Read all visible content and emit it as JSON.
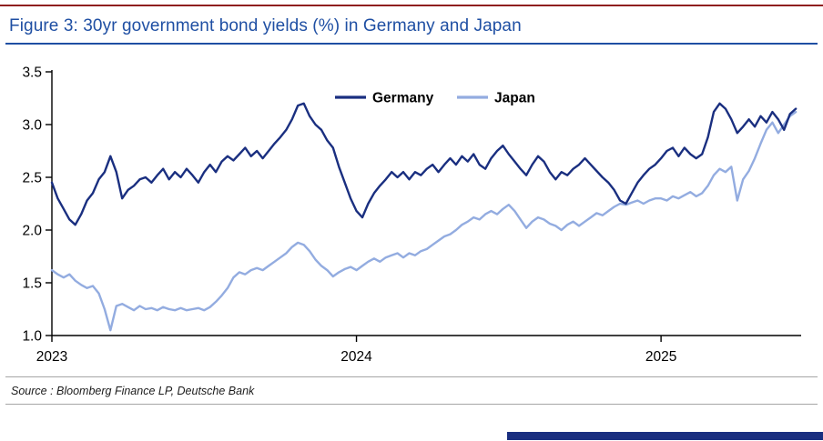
{
  "page": {
    "title": "Figure 3: 30yr government bond yields (%) in Germany and Japan",
    "source": "Source : Bloomberg Finance LP, Deutsche Bank"
  },
  "colors": {
    "title_blue": "#1f4fa3",
    "top_rule_red": "#8f1f1f",
    "germany_line": "#1a2f80",
    "japan_line": "#93ace0",
    "axis": "#000000",
    "footer_bar": "#1a2f80"
  },
  "chart_data": {
    "type": "line",
    "title": "30yr government bond yields (%) in Germany and Japan",
    "xlabel": "",
    "ylabel": "",
    "grid": false,
    "legend_position": "top-center-inside",
    "ylim": [
      1.0,
      3.5
    ],
    "xlim": [
      2023.0,
      2025.46
    ],
    "y_ticks": [
      1.0,
      1.5,
      2.0,
      2.5,
      3.0,
      3.5
    ],
    "x_ticks": [
      {
        "value": 2023,
        "label": "2023"
      },
      {
        "value": 2024,
        "label": "2024"
      },
      {
        "value": 2025,
        "label": "2025"
      }
    ],
    "x_start": 2023.0,
    "x_step_years": 0.019231,
    "series": [
      {
        "name": "Germany",
        "color_key": "germany_line",
        "values": [
          2.45,
          2.3,
          2.2,
          2.1,
          2.05,
          2.15,
          2.28,
          2.35,
          2.48,
          2.55,
          2.7,
          2.55,
          2.3,
          2.38,
          2.42,
          2.48,
          2.5,
          2.45,
          2.52,
          2.58,
          2.48,
          2.55,
          2.5,
          2.58,
          2.52,
          2.45,
          2.55,
          2.62,
          2.55,
          2.65,
          2.7,
          2.66,
          2.72,
          2.78,
          2.7,
          2.75,
          2.68,
          2.75,
          2.82,
          2.88,
          2.95,
          3.05,
          3.18,
          3.2,
          3.08,
          3.0,
          2.95,
          2.85,
          2.78,
          2.6,
          2.45,
          2.3,
          2.18,
          2.12,
          2.25,
          2.35,
          2.42,
          2.48,
          2.55,
          2.5,
          2.55,
          2.48,
          2.55,
          2.52,
          2.58,
          2.62,
          2.55,
          2.62,
          2.68,
          2.62,
          2.7,
          2.65,
          2.72,
          2.62,
          2.58,
          2.68,
          2.75,
          2.8,
          2.72,
          2.65,
          2.58,
          2.52,
          2.62,
          2.7,
          2.65,
          2.55,
          2.48,
          2.55,
          2.52,
          2.58,
          2.62,
          2.68,
          2.62,
          2.56,
          2.5,
          2.45,
          2.38,
          2.28,
          2.25,
          2.35,
          2.45,
          2.52,
          2.58,
          2.62,
          2.68,
          2.75,
          2.78,
          2.7,
          2.78,
          2.72,
          2.68,
          2.72,
          2.88,
          3.12,
          3.2,
          3.15,
          3.05,
          2.92,
          2.98,
          3.05,
          2.98,
          3.08,
          3.02,
          3.12,
          3.05,
          2.95,
          3.1,
          3.15
        ]
      },
      {
        "name": "Japan",
        "color_key": "japan_line",
        "values": [
          1.62,
          1.58,
          1.55,
          1.58,
          1.52,
          1.48,
          1.45,
          1.47,
          1.4,
          1.25,
          1.05,
          1.28,
          1.3,
          1.27,
          1.24,
          1.28,
          1.25,
          1.26,
          1.24,
          1.27,
          1.25,
          1.24,
          1.26,
          1.24,
          1.25,
          1.26,
          1.24,
          1.27,
          1.32,
          1.38,
          1.45,
          1.55,
          1.6,
          1.58,
          1.62,
          1.64,
          1.62,
          1.66,
          1.7,
          1.74,
          1.78,
          1.84,
          1.88,
          1.86,
          1.8,
          1.72,
          1.66,
          1.62,
          1.56,
          1.6,
          1.63,
          1.65,
          1.62,
          1.66,
          1.7,
          1.73,
          1.7,
          1.74,
          1.76,
          1.78,
          1.74,
          1.78,
          1.76,
          1.8,
          1.82,
          1.86,
          1.9,
          1.94,
          1.96,
          2.0,
          2.05,
          2.08,
          2.12,
          2.1,
          2.15,
          2.18,
          2.15,
          2.2,
          2.24,
          2.18,
          2.1,
          2.02,
          2.08,
          2.12,
          2.1,
          2.06,
          2.04,
          2.0,
          2.05,
          2.08,
          2.04,
          2.08,
          2.12,
          2.16,
          2.14,
          2.18,
          2.22,
          2.25,
          2.24,
          2.26,
          2.28,
          2.25,
          2.28,
          2.3,
          2.3,
          2.28,
          2.32,
          2.3,
          2.33,
          2.36,
          2.32,
          2.35,
          2.42,
          2.52,
          2.58,
          2.55,
          2.6,
          2.28,
          2.48,
          2.56,
          2.68,
          2.82,
          2.95,
          3.02,
          2.92,
          3.0,
          3.08,
          3.12
        ]
      }
    ]
  }
}
